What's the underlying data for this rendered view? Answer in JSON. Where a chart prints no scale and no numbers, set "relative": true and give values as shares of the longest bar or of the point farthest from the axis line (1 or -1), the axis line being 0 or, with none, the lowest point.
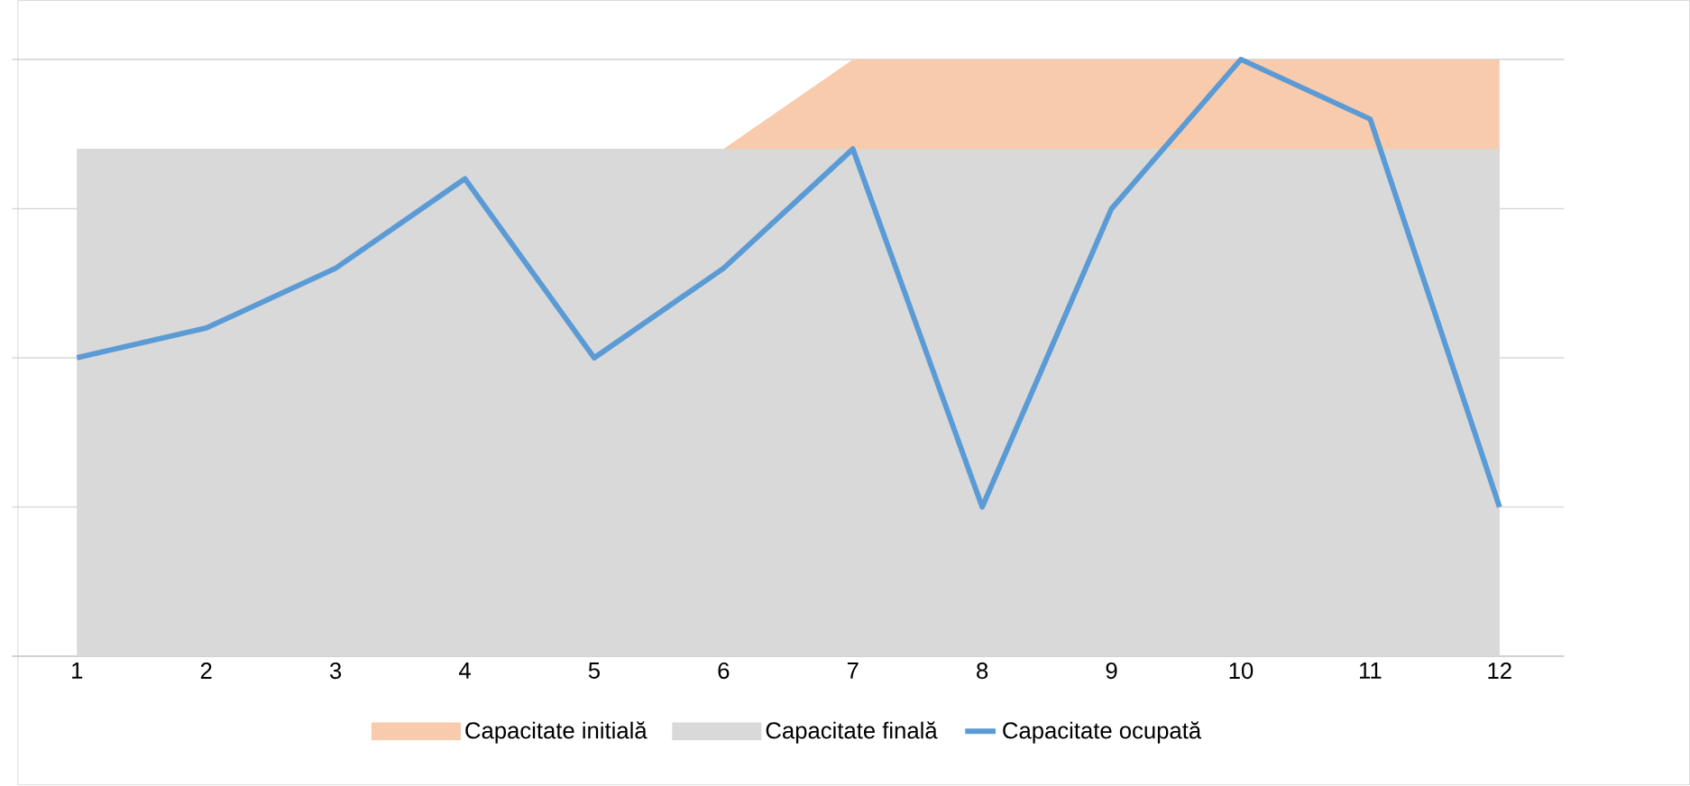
{
  "chart_data": {
    "type": "area",
    "relative": true,
    "grid": "y",
    "legend": "bottom",
    "categories": [
      "1",
      "2",
      "3",
      "4",
      "5",
      "6",
      "7",
      "8",
      "9",
      "10",
      "11",
      "12"
    ],
    "series": [
      {
        "name": "Capacitate initială",
        "color": "#f8cbad",
        "values": [
          0.85,
          0.85,
          0.85,
          0.85,
          0.85,
          0.85,
          1.0,
          1.0,
          1.0,
          1.0,
          1.0,
          1.0
        ]
      },
      {
        "name": "Capacitate finală",
        "color": "#d9d9d9",
        "values": [
          0.85,
          0.85,
          0.85,
          0.85,
          0.85,
          0.85,
          0.85,
          0.85,
          0.85,
          0.85,
          0.85,
          0.85
        ]
      },
      {
        "name": "Capacitate ocupată",
        "type": "line",
        "color": "#5b9bd5",
        "values": [
          0.5,
          0.55,
          0.65,
          0.8,
          0.5,
          0.65,
          0.85,
          0.25,
          0.75,
          1.0,
          0.9,
          0.25
        ]
      }
    ]
  }
}
